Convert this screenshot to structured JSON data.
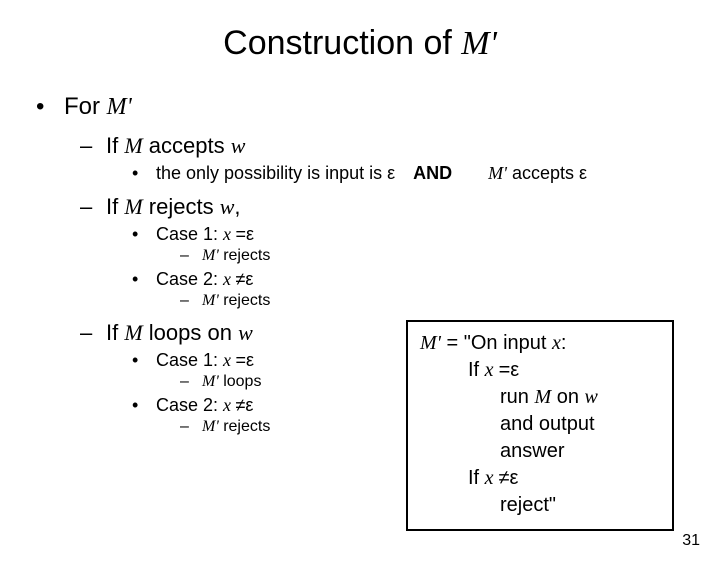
{
  "title_prefix": "Construction of ",
  "title_m": "M'",
  "l1_prefix": "For ",
  "l1_m": "M'",
  "accepts": {
    "if": "If ",
    "m": "M",
    "mid": " accepts ",
    "w": "w"
  },
  "accepts_sub": {
    "text": "the only possibility is input is ε",
    "and": "AND",
    "mprime": "M'",
    "tail": " accepts ε"
  },
  "rejects": {
    "if": "If ",
    "m": "M",
    "mid": " rejects ",
    "w": "w",
    "comma": ","
  },
  "case1": {
    "label": "Case 1:  ",
    "x": "x ",
    "eq": "=ε"
  },
  "case2": {
    "label": "Case 2:  ",
    "x": "x ",
    "neq": "≠ε"
  },
  "mrejects": {
    "m": "M'",
    "tail": " rejects"
  },
  "mloops": {
    "m": "M'",
    "tail": " loops"
  },
  "loops": {
    "if": "If ",
    "m": "M",
    "mid": " loops on ",
    "w": "w"
  },
  "box": {
    "l1a": "M'",
    "l1b": " = \"On input ",
    "l1c": "x",
    "l1d": ":",
    "l2a": "If ",
    "l2b": "x ",
    "l2c": "=ε",
    "l3a": "run ",
    "l3b": "M",
    "l3c": " on ",
    "l3d": "w",
    "l4": "and output answer",
    "l5a": "If ",
    "l5b": "x ",
    "l5c": "≠ε",
    "l6": "reject\""
  },
  "page": "31"
}
